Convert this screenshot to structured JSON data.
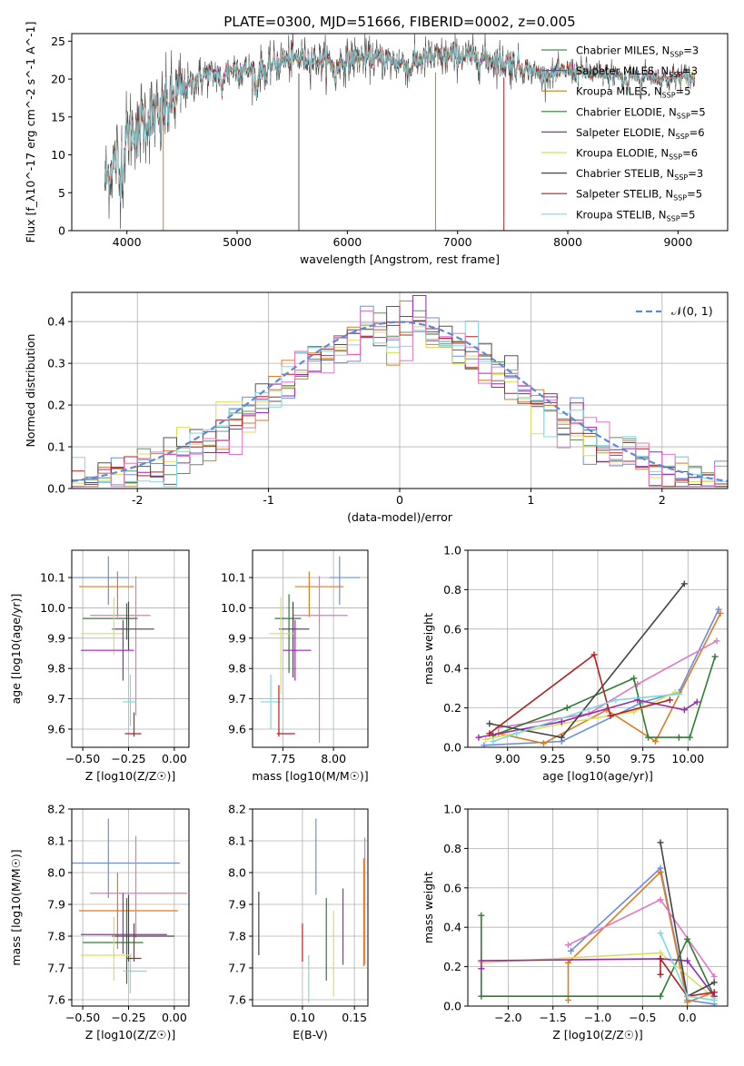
{
  "chart_data": [
    {
      "id": "spectrum",
      "type": "line",
      "title": "PLATE=0300, MJD=51666, FIBERID=0002, z=0.005",
      "xlabel": "wavelength [Angstrom, rest frame]",
      "ylabel": "Flux [f_λ10^-17 erg cm^-2 s^-1 A^-1]",
      "xlim": [
        3500,
        9450
      ],
      "ylim": [
        0,
        26
      ],
      "xticks": [
        4000,
        5000,
        6000,
        7000,
        8000,
        9000
      ],
      "yticks": [
        0,
        5,
        10,
        15,
        20,
        25
      ],
      "legend_position": "right",
      "series": [
        {
          "name": "Chabrier MILES, N_SSP=3",
          "color": "#4a8a4a"
        },
        {
          "name": "Salpeter MILES, N_SSP=3",
          "color": "#8a2be2"
        },
        {
          "name": "Kroupa MILES, N_SSP=5",
          "color": "#b8860b"
        },
        {
          "name": "Chabrier ELODIE, N_SSP=5",
          "color": "#2e7d32"
        },
        {
          "name": "Salpeter ELODIE, N_SSP=6",
          "color": "#9c27b0"
        },
        {
          "name": "Kroupa ELODIE, N_SSP=6",
          "color": "#d4e157"
        },
        {
          "name": "Chabrier STELIB, N_SSP=3",
          "color": "#444444"
        },
        {
          "name": "Salpeter STELIB, N_SSP=5",
          "color": "#b22222"
        },
        {
          "name": "Kroupa STELIB, N_SSP=5",
          "color": "#7fd8e0"
        }
      ],
      "spectrum_anchors": {
        "x": [
          3800,
          3900,
          4000,
          4100,
          4300,
          4500,
          4700,
          4860,
          5000,
          5175,
          5400,
          5600,
          5890,
          6100,
          6300,
          6563,
          6700,
          7000,
          7200,
          7400,
          7600,
          7800,
          8000,
          8200,
          8500,
          8700,
          8900,
          9100,
          9150
        ],
        "y": [
          6.5,
          9.5,
          12.5,
          14.5,
          15.5,
          18.5,
          20.5,
          20.8,
          21.5,
          21.0,
          22.5,
          22.8,
          22.0,
          22.8,
          22.6,
          22.0,
          22.8,
          23.0,
          22.8,
          22.3,
          21.5,
          20.5,
          21.2,
          20.8,
          20.5,
          20.6,
          20.0,
          20.4,
          19.8
        ]
      },
      "drops_to_zero_at": [
        4330,
        5560,
        6800,
        7420
      ]
    },
    {
      "id": "residual-histogram",
      "type": "area",
      "xlabel": "(data-model)/error",
      "ylabel": "Normed distribution",
      "xlim": [
        -2.5,
        2.5
      ],
      "ylim": [
        0,
        0.47
      ],
      "xticks": [
        -2,
        -1,
        0,
        1,
        2
      ],
      "yticks": [
        0.0,
        0.1,
        0.2,
        0.3,
        0.4
      ],
      "grid": true,
      "legend_position": "top-right",
      "series": [
        {
          "name": "𝒩(0, 1)",
          "type": "line",
          "dashed": true,
          "color": "#5b8bd6",
          "mu": 0,
          "sigma": 1
        }
      ],
      "hist_bin_width": 0.1,
      "hist_colors": [
        "#6b8ee0",
        "#e07b1f",
        "#5f8f5f",
        "#9c27b0",
        "#d8e05a",
        "#555555",
        "#b22222",
        "#7fd8e0",
        "#e377c2"
      ]
    },
    {
      "id": "age-vs-Z",
      "type": "scatter",
      "xlabel": "Z [log10(Z/Z☉)]",
      "ylabel": "age  [log10(age/yr)]",
      "xlim": [
        -0.56,
        0.08
      ],
      "ylim": [
        9.54,
        10.19
      ],
      "xticks": [
        -0.5,
        -0.25,
        0.0
      ],
      "xtick_labels": [
        "−0.50",
        "−0.25",
        "0.00"
      ],
      "yticks": [
        9.6,
        9.7,
        9.8,
        9.9,
        10.0,
        10.1
      ],
      "grid": true,
      "points": [
        {
          "x": -0.36,
          "y": 10.1,
          "xerr": [
            0.42,
            0.11
          ],
          "yerr": [
            0.09,
            0.07
          ],
          "color": "#6b8ee0"
        },
        {
          "x": -0.31,
          "y": 10.07,
          "xerr": [
            0.21,
            0.09
          ],
          "yerr": [
            0.1,
            0.05
          ],
          "color": "#e07b1f"
        },
        {
          "x": -0.21,
          "y": 9.975,
          "xerr": [
            0.25,
            0.08
          ],
          "yerr": [
            0.33,
            0.13
          ],
          "color": "#e377c2"
        },
        {
          "x": -0.26,
          "y": 9.965,
          "xerr": [
            0.24,
            0.06
          ],
          "yerr": [
            0.07,
            0.05
          ],
          "color": "#2e7d32"
        },
        {
          "x": -0.25,
          "y": 9.93,
          "xerr": [
            0.09,
            0.14
          ],
          "yerr": [
            0.07,
            0.09
          ],
          "color": "#444444"
        },
        {
          "x": -0.33,
          "y": 9.915,
          "xerr": [
            0.18,
            0.05
          ],
          "yerr": [
            0.07,
            0.12
          ],
          "color": "#d8e05a"
        },
        {
          "x": -0.28,
          "y": 9.86,
          "xerr": [
            0.23,
            0.06
          ],
          "yerr": [
            0.1,
            0.1
          ],
          "color": "#9c27b0"
        },
        {
          "x": -0.24,
          "y": 9.69,
          "xerr": [
            0.04,
            0.03
          ],
          "yerr": [
            0.08,
            0.09
          ],
          "color": "#7fd8e0"
        },
        {
          "x": -0.22,
          "y": 9.585,
          "xerr": [
            0.05,
            0.04
          ],
          "yerr": [
            0.01,
            0.07
          ],
          "color": "#b22222"
        }
      ]
    },
    {
      "id": "age-vs-mass",
      "type": "scatter",
      "xlabel": "mass [log10(M/M☉)]",
      "ylabel": "",
      "xlim": [
        7.6,
        8.17
      ],
      "ylim": [
        9.54,
        10.19
      ],
      "xticks": [
        7.75,
        8.0
      ],
      "xtick_labels": [
        "7.75",
        "8.00"
      ],
      "yticks": [
        9.6,
        9.7,
        9.8,
        9.9,
        10.0,
        10.1
      ],
      "grid": true,
      "points": [
        {
          "x": 8.03,
          "y": 10.1,
          "xerr": [
            0.05,
            0.1
          ],
          "yerr": [
            0.09,
            0.07
          ],
          "color": "#6b8ee0"
        },
        {
          "x": 7.88,
          "y": 10.07,
          "xerr": [
            0.07,
            0.17
          ],
          "yerr": [
            0.1,
            0.05
          ],
          "color": "#e07b1f"
        },
        {
          "x": 7.93,
          "y": 9.975,
          "xerr": [
            0.13,
            0.14
          ],
          "yerr": [
            0.42,
            0.13
          ],
          "color": "#e377c2"
        },
        {
          "x": 7.78,
          "y": 9.965,
          "xerr": [
            0.07,
            0.06
          ],
          "yerr": [
            0.18,
            0.08
          ],
          "color": "#2e7d32"
        },
        {
          "x": 7.8,
          "y": 9.93,
          "xerr": [
            0.07,
            0.08
          ],
          "yerr": [
            0.16,
            0.09
          ],
          "color": "#444444"
        },
        {
          "x": 7.74,
          "y": 9.915,
          "xerr": [
            0.06,
            0.07
          ],
          "yerr": [
            0.2,
            0.12
          ],
          "color": "#d8e05a"
        },
        {
          "x": 7.81,
          "y": 9.86,
          "xerr": [
            0.06,
            0.08
          ],
          "yerr": [
            0.1,
            0.1
          ],
          "color": "#9c27b0"
        },
        {
          "x": 7.69,
          "y": 9.69,
          "xerr": [
            0.05,
            0.05
          ],
          "yerr": [
            0.09,
            0.09
          ],
          "color": "#7fd8e0"
        },
        {
          "x": 7.73,
          "y": 9.585,
          "xerr": [
            0.01,
            0.08
          ],
          "yerr": [
            0.01,
            0.16
          ],
          "color": "#b22222"
        }
      ]
    },
    {
      "id": "massweight-vs-age",
      "type": "line",
      "xlabel": "age  [log10(age/yr)]",
      "ylabel": "mass weight",
      "xlim": [
        8.78,
        10.22
      ],
      "ylim": [
        0,
        1.0
      ],
      "xticks": [
        9.0,
        9.25,
        9.5,
        9.75,
        10.0
      ],
      "xtick_labels": [
        "9.00",
        "9.25",
        "9.50",
        "9.75",
        "10.00"
      ],
      "yticks": [
        0.0,
        0.2,
        0.4,
        0.6,
        0.8,
        1.0
      ],
      "grid": true,
      "series": [
        {
          "color": "#6b8ee0",
          "x": [
            8.87,
            9.3,
            9.75,
            9.95,
            10.17
          ],
          "y": [
            0.01,
            0.03,
            0.23,
            0.28,
            0.7
          ]
        },
        {
          "color": "#e07b1f",
          "x": [
            8.95,
            9.2,
            9.55,
            9.82,
            10.18
          ],
          "y": [
            0.07,
            0.02,
            0.19,
            0.03,
            0.68
          ]
        },
        {
          "color": "#e377c2",
          "x": [
            8.95,
            9.45,
            9.72,
            10.16
          ],
          "y": [
            0.1,
            0.17,
            0.32,
            0.54
          ]
        },
        {
          "color": "#2e7d32",
          "x": [
            8.92,
            9.33,
            9.7,
            9.78,
            9.95,
            10.01,
            10.15
          ],
          "y": [
            0.06,
            0.2,
            0.35,
            0.05,
            0.05,
            0.05,
            0.46
          ]
        },
        {
          "color": "#d8e05a",
          "x": [
            8.88,
            9.3,
            9.7,
            9.93
          ],
          "y": [
            0.04,
            0.12,
            0.18,
            0.28
          ]
        },
        {
          "color": "#9c27b0",
          "x": [
            8.84,
            9.3,
            9.72,
            9.98,
            10.05
          ],
          "y": [
            0.05,
            0.13,
            0.24,
            0.19,
            0.23
          ]
        },
        {
          "color": "#444444",
          "x": [
            8.9,
            9.3,
            9.98
          ],
          "y": [
            0.12,
            0.05,
            0.83
          ]
        },
        {
          "color": "#b22222",
          "x": [
            8.9,
            9.48,
            9.57,
            9.9
          ],
          "y": [
            0.07,
            0.47,
            0.16,
            0.24
          ]
        },
        {
          "color": "#7fd8e0",
          "x": [
            8.92,
            9.05,
            9.6,
            9.95
          ],
          "y": [
            0.03,
            0.07,
            0.24,
            0.27
          ]
        }
      ]
    },
    {
      "id": "mass-vs-Z",
      "type": "scatter",
      "xlabel": "Z [log10(Z/Z☉)]",
      "ylabel": "mass [log10(M/M☉)]",
      "xlim": [
        -0.56,
        0.08
      ],
      "ylim": [
        7.58,
        8.2
      ],
      "xticks": [
        -0.5,
        -0.25,
        0.0
      ],
      "xtick_labels": [
        "−0.50",
        "−0.25",
        "0.00"
      ],
      "yticks": [
        7.6,
        7.7,
        7.8,
        7.9,
        8.0,
        8.1,
        8.2
      ],
      "grid": true,
      "points": [
        {
          "x": -0.36,
          "y": 8.03,
          "xerr": [
            0.42,
            0.39
          ],
          "yerr": [
            0.11,
            0.14
          ],
          "color": "#6b8ee0"
        },
        {
          "x": -0.31,
          "y": 7.88,
          "xerr": [
            0.21,
            0.33
          ],
          "yerr": [
            0.12,
            0.12
          ],
          "color": "#e07b1f"
        },
        {
          "x": -0.21,
          "y": 7.935,
          "xerr": [
            0.25,
            0.28
          ],
          "yerr": [
            0.14,
            0.18
          ],
          "color": "#e377c2"
        },
        {
          "x": -0.26,
          "y": 7.78,
          "xerr": [
            0.24,
            0.09
          ],
          "yerr": [
            0.13,
            0.14
          ],
          "color": "#2e7d32"
        },
        {
          "x": -0.25,
          "y": 7.8,
          "xerr": [
            0.09,
            0.25
          ],
          "yerr": [
            0.08,
            0.13
          ],
          "color": "#444444"
        },
        {
          "x": -0.33,
          "y": 7.74,
          "xerr": [
            0.18,
            0.1
          ],
          "yerr": [
            0.08,
            0.12
          ],
          "color": "#d8e05a"
        },
        {
          "x": -0.28,
          "y": 7.805,
          "xerr": [
            0.23,
            0.24
          ],
          "yerr": [
            0.06,
            0.13
          ],
          "color": "#9c27b0"
        },
        {
          "x": -0.24,
          "y": 7.69,
          "xerr": [
            0.04,
            0.09
          ],
          "yerr": [
            0.07,
            0.05
          ],
          "color": "#7fd8e0"
        },
        {
          "x": -0.22,
          "y": 7.73,
          "xerr": [
            0.04,
            0.04
          ],
          "yerr": [
            0.01,
            0.11
          ],
          "color": "#b22222"
        }
      ]
    },
    {
      "id": "mass-vs-EBV",
      "type": "scatter",
      "xlabel": "E(B-V)",
      "ylabel": "",
      "xlim": [
        0.052,
        0.163
      ],
      "ylim": [
        7.58,
        8.2
      ],
      "xticks": [
        0.1,
        0.15
      ],
      "xtick_labels": [
        "0.10",
        "0.15"
      ],
      "yticks": [
        7.6,
        7.7,
        7.8,
        7.9,
        8.0,
        8.1,
        8.2
      ],
      "grid": true,
      "points": [
        {
          "x": 0.058,
          "y": 7.84,
          "xerr": [
            0,
            0
          ],
          "yerr": [
            0.1,
            0.1
          ],
          "color": "#444444"
        },
        {
          "x": 0.1,
          "y": 7.78,
          "xerr": [
            0,
            0
          ],
          "yerr": [
            0.06,
            0.06
          ],
          "color": "#b22222"
        },
        {
          "x": 0.106,
          "y": 7.665,
          "xerr": [
            0,
            0
          ],
          "yerr": [
            0.075,
            0.075
          ],
          "color": "#7fd8e0"
        },
        {
          "x": 0.113,
          "y": 8.05,
          "xerr": [
            0,
            0
          ],
          "yerr": [
            0.12,
            0.12
          ],
          "color": "#6b8ee0"
        },
        {
          "x": 0.123,
          "y": 7.79,
          "xerr": [
            0,
            0
          ],
          "yerr": [
            0.13,
            0.13
          ],
          "color": "#2e7d32"
        },
        {
          "x": 0.13,
          "y": 7.745,
          "xerr": [
            0,
            0
          ],
          "yerr": [
            0.135,
            0.135
          ],
          "color": "#d8e05a"
        },
        {
          "x": 0.139,
          "y": 7.83,
          "xerr": [
            0,
            0
          ],
          "yerr": [
            0.12,
            0.12
          ],
          "color": "#9c27b0"
        },
        {
          "x": 0.159,
          "y": 7.875,
          "xerr": [
            0,
            0
          ],
          "yerr": [
            0.17,
            0.17
          ],
          "color": "#e07b1f"
        },
        {
          "x": 0.16,
          "y": 7.91,
          "xerr": [
            0,
            0
          ],
          "yerr": [
            0.2,
            0.2
          ],
          "color": "#e377c2"
        }
      ]
    },
    {
      "id": "massweight-vs-Z",
      "type": "line",
      "xlabel": "Z [log10(Z/Z☉)]",
      "ylabel": "mass weight",
      "xlim": [
        -2.45,
        0.45
      ],
      "ylim": [
        0,
        1.0
      ],
      "xticks": [
        -2.0,
        -1.5,
        -1.0,
        -0.5,
        0.0
      ],
      "xtick_labels": [
        "−2.0",
        "−1.5",
        "−1.0",
        "−0.5",
        "0.0"
      ],
      "yticks": [
        0.0,
        0.2,
        0.4,
        0.6,
        0.8,
        1.0
      ],
      "grid": true,
      "series": [
        {
          "color": "#6b8ee0",
          "x": [
            -1.3,
            -0.3,
            0.0,
            0.3
          ],
          "y": [
            0.28,
            0.7,
            0.03,
            0.01
          ]
        },
        {
          "color": "#e07b1f",
          "x": [
            -1.33,
            -1.33,
            -0.3,
            0.0,
            0.3
          ],
          "y": [
            0.03,
            0.22,
            0.68,
            0.02,
            0.07
          ]
        },
        {
          "color": "#e377c2",
          "x": [
            -1.33,
            -0.3,
            0.3
          ],
          "y": [
            0.31,
            0.54,
            0.15
          ]
        },
        {
          "color": "#2e7d32",
          "x": [
            -2.3,
            -2.3,
            -0.3,
            0.0,
            0.3
          ],
          "y": [
            0.46,
            0.05,
            0.05,
            0.34,
            0.05
          ]
        },
        {
          "color": "#d8e05a",
          "x": [
            -2.3,
            -0.3,
            0.3
          ],
          "y": [
            0.22,
            0.27,
            0.04
          ]
        },
        {
          "color": "#9c27b0",
          "x": [
            -2.3,
            -2.3,
            -0.3,
            0.0,
            0.3
          ],
          "y": [
            0.19,
            0.23,
            0.24,
            0.23,
            0.05
          ]
        },
        {
          "color": "#444444",
          "x": [
            -0.3,
            0.0,
            0.3
          ],
          "y": [
            0.83,
            0.05,
            0.12
          ]
        },
        {
          "color": "#b22222",
          "x": [
            -0.3,
            -0.3,
            0.0,
            0.3
          ],
          "y": [
            0.16,
            0.24,
            0.05,
            0.07
          ]
        },
        {
          "color": "#7fd8e0",
          "x": [
            -0.3,
            0.0,
            0.3
          ],
          "y": [
            0.37,
            0.05,
            0.03
          ]
        }
      ]
    }
  ]
}
